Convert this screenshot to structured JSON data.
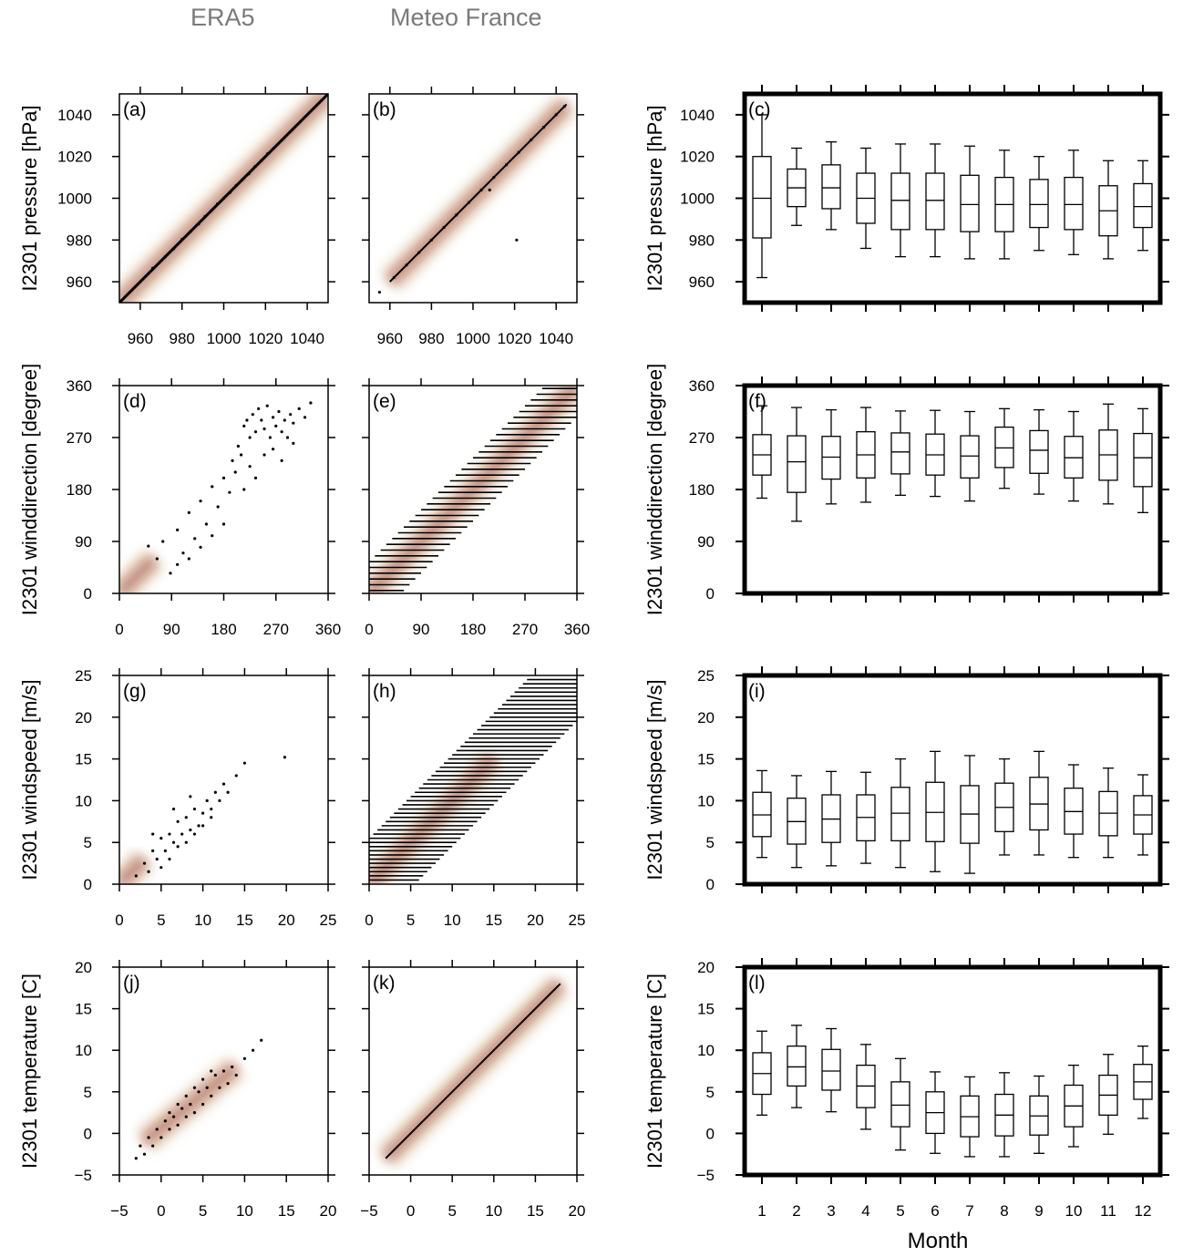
{
  "column_titles": [
    "ERA5",
    "Meteo France"
  ],
  "month_axis_label": "Month",
  "colors": {
    "box": "#000000",
    "frame_scatter": "#000000",
    "density_low": "#c8a070",
    "density_high": "#8b1a1a"
  },
  "chart_data": [
    {
      "id": "a",
      "panel_label": "(a)",
      "type": "scatter",
      "ylabel": "I2301 pressure [hPa]",
      "xlim": [
        950,
        1050
      ],
      "ylim": [
        950,
        1050
      ],
      "xticks": [
        960,
        980,
        1000,
        1020,
        1040
      ],
      "xtick_labels": [
        "960",
        "980",
        "1000",
        "1020",
        "1040"
      ],
      "yticks": [
        960,
        980,
        1000,
        1020,
        1040
      ],
      "ytick_labels": [
        "960",
        "980",
        "1000",
        "1020",
        "1040"
      ],
      "density_path": [
        [
          950,
          950
        ],
        [
          1050,
          1050
        ]
      ],
      "points_x": [
        966,
        972,
        976,
        980,
        984,
        988,
        991,
        994,
        997,
        1000,
        1003,
        1006,
        1009,
        1012,
        1015,
        1018,
        1021,
        1024
      ],
      "points_y": [
        966.5,
        972,
        975.8,
        980.3,
        984,
        987.7,
        991.2,
        994,
        997.3,
        1000,
        1002.8,
        1006.2,
        1009,
        1011.7,
        1015.2,
        1018,
        1021.3,
        1024
      ]
    },
    {
      "id": "b",
      "panel_label": "(b)",
      "type": "scatter",
      "xlim": [
        950,
        1050
      ],
      "ylim": [
        950,
        1050
      ],
      "xticks": [
        960,
        980,
        1000,
        1020,
        1040
      ],
      "xtick_labels": [
        "960",
        "980",
        "1000",
        "1020",
        "1040"
      ],
      "yticks": [
        960,
        980,
        1000,
        1020,
        1040
      ],
      "density_path": [
        [
          960,
          960
        ],
        [
          1045,
          1045
        ]
      ],
      "points_x": [
        955,
        962,
        968,
        974,
        980,
        986,
        992,
        998,
        1004,
        1010,
        1016,
        1022,
        1028,
        1034,
        1040,
        1044,
        1008,
        1021
      ],
      "points_y": [
        955,
        962,
        968,
        974,
        980,
        986,
        992,
        998,
        1004,
        1010,
        1016,
        1022,
        1028,
        1034,
        1040,
        1044,
        1004,
        980
      ]
    },
    {
      "id": "c",
      "panel_label": "(c)",
      "type": "box",
      "ylabel": "I2301 pressure [hPa]",
      "ylim": [
        950,
        1050
      ],
      "yticks": [
        960,
        980,
        1000,
        1020,
        1040
      ],
      "ytick_labels": [
        "960",
        "980",
        "1000",
        "1020",
        "1040"
      ],
      "categories": [
        "1",
        "2",
        "3",
        "4",
        "5",
        "6",
        "7",
        "8",
        "9",
        "10",
        "11",
        "12"
      ],
      "whisker_low": [
        962,
        987,
        985,
        976,
        972,
        972,
        971,
        971,
        975,
        973,
        971,
        975
      ],
      "q1": [
        981,
        996,
        995,
        988,
        985,
        985,
        984,
        984,
        986,
        985,
        982,
        986
      ],
      "median": [
        1000,
        1005,
        1005,
        1000,
        999,
        999,
        997,
        997,
        997,
        997,
        994,
        996
      ],
      "q3": [
        1020,
        1014,
        1016,
        1012,
        1012,
        1012,
        1011,
        1010,
        1009,
        1010,
        1006,
        1007
      ],
      "whisker_high": [
        1040,
        1024,
        1027,
        1024,
        1026,
        1026,
        1025,
        1023,
        1020,
        1023,
        1018,
        1018
      ]
    },
    {
      "id": "d",
      "panel_label": "(d)",
      "type": "scatter",
      "ylabel": "I2301 winddirection [degree]",
      "xlim": [
        0,
        360
      ],
      "ylim": [
        0,
        360
      ],
      "xticks": [
        0,
        90,
        180,
        270,
        360
      ],
      "xtick_labels": [
        "0",
        "90",
        "180",
        "270",
        "360"
      ],
      "yticks": [
        0,
        90,
        180,
        270,
        360
      ],
      "ytick_labels": [
        "0",
        "90",
        "180",
        "270",
        "360"
      ],
      "density_path": [
        [
          0,
          0
        ],
        [
          60,
          60
        ]
      ],
      "points_x": [
        50,
        65,
        75,
        88,
        100,
        110,
        120,
        130,
        140,
        150,
        160,
        170,
        180,
        190,
        195,
        200,
        205,
        210,
        215,
        220,
        225,
        230,
        235,
        240,
        245,
        250,
        255,
        260,
        265,
        270,
        275,
        280,
        285,
        290,
        295,
        300,
        310,
        320,
        330,
        215,
        225,
        235,
        250,
        265,
        280,
        300,
        180,
        160,
        140,
        120,
        100
      ],
      "points_y": [
        82,
        60,
        90,
        35,
        110,
        70,
        140,
        95,
        160,
        120,
        185,
        150,
        200,
        175,
        230,
        210,
        255,
        240,
        290,
        300,
        270,
        310,
        280,
        320,
        300,
        285,
        325,
        270,
        305,
        290,
        315,
        280,
        300,
        270,
        310,
        295,
        320,
        305,
        330,
        180,
        220,
        200,
        240,
        250,
        230,
        260,
        120,
        100,
        80,
        60,
        50
      ]
    },
    {
      "id": "e",
      "panel_label": "(e)",
      "type": "scatter",
      "xlim": [
        0,
        360
      ],
      "ylim": [
        0,
        360
      ],
      "xticks": [
        0,
        90,
        180,
        270,
        360
      ],
      "xtick_labels": [
        "0",
        "90",
        "180",
        "270",
        "360"
      ],
      "yticks": [
        0,
        90,
        180,
        270,
        360
      ],
      "density_path": [
        [
          0,
          0
        ],
        [
          360,
          360
        ]
      ],
      "band_levels": [
        5,
        15,
        25,
        35,
        45,
        55,
        65,
        75,
        85,
        95,
        105,
        115,
        125,
        135,
        145,
        155,
        165,
        175,
        185,
        195,
        205,
        215,
        225,
        235,
        245,
        255,
        265,
        275,
        285,
        295,
        305,
        315,
        325,
        335,
        345,
        355
      ],
      "band_half_width": 55,
      "points_x": [],
      "points_y": []
    },
    {
      "id": "f",
      "panel_label": "(f)",
      "type": "box",
      "ylabel": "I2301 winddirection [degree]",
      "ylim": [
        0,
        360
      ],
      "yticks": [
        0,
        90,
        180,
        270,
        360
      ],
      "ytick_labels": [
        "0",
        "90",
        "180",
        "270",
        "360"
      ],
      "categories": [
        "1",
        "2",
        "3",
        "4",
        "5",
        "6",
        "7",
        "8",
        "9",
        "10",
        "11",
        "12"
      ],
      "whisker_low": [
        165,
        125,
        155,
        158,
        170,
        168,
        160,
        182,
        172,
        160,
        155,
        140
      ],
      "q1": [
        205,
        175,
        198,
        200,
        207,
        205,
        200,
        218,
        208,
        200,
        196,
        185
      ],
      "median": [
        240,
        228,
        236,
        240,
        245,
        240,
        238,
        252,
        248,
        235,
        240,
        235
      ],
      "q3": [
        275,
        273,
        272,
        280,
        278,
        276,
        273,
        288,
        282,
        272,
        283,
        277
      ],
      "whisker_high": [
        325,
        322,
        318,
        322,
        316,
        317,
        315,
        320,
        318,
        315,
        328,
        320
      ]
    },
    {
      "id": "g",
      "panel_label": "(g)",
      "type": "scatter",
      "ylabel": "I2301 windspeed [m/s]",
      "xlim": [
        0,
        25
      ],
      "ylim": [
        0,
        25
      ],
      "xticks": [
        0,
        5,
        10,
        15,
        20,
        25
      ],
      "xtick_labels": [
        "0",
        "5",
        "10",
        "15",
        "20",
        "25"
      ],
      "yticks": [
        0,
        5,
        10,
        15,
        20,
        25
      ],
      "ytick_labels": [
        "0",
        "5",
        "10",
        "15",
        "20",
        "25"
      ],
      "density_path": [
        [
          0,
          0
        ],
        [
          3,
          3
        ]
      ],
      "points_x": [
        2,
        3,
        3.5,
        4,
        4.5,
        5,
        5.5,
        6,
        6.5,
        7,
        7.5,
        8,
        8.5,
        9,
        9.5,
        10,
        10.5,
        11,
        11.5,
        12,
        12.5,
        13,
        14,
        15,
        19.8,
        5,
        6,
        7,
        8,
        9,
        10,
        11,
        4,
        6.5,
        8.5
      ],
      "points_y": [
        1,
        2.5,
        1.5,
        4,
        3,
        5.5,
        4,
        6,
        5,
        7.5,
        6,
        8,
        6.5,
        9,
        7,
        8.5,
        10,
        9,
        11,
        10,
        12,
        11,
        13,
        14.5,
        15.2,
        2,
        3,
        4.5,
        5,
        6,
        7,
        8,
        6,
        9,
        10.5
      ]
    },
    {
      "id": "h",
      "panel_label": "(h)",
      "type": "scatter",
      "xlim": [
        0,
        25
      ],
      "ylim": [
        0,
        25
      ],
      "xticks": [
        0,
        5,
        10,
        15,
        20,
        25
      ],
      "xtick_labels": [
        "0",
        "5",
        "10",
        "15",
        "20",
        "25"
      ],
      "yticks": [
        0,
        5,
        10,
        15,
        20,
        25
      ],
      "density_path": [
        [
          0,
          0
        ],
        [
          15,
          15
        ]
      ],
      "band_levels": [
        0.5,
        1,
        1.5,
        2,
        2.5,
        3,
        3.5,
        4,
        4.5,
        5,
        5.5,
        6,
        6.5,
        7,
        7.5,
        8,
        8.5,
        9,
        9.5,
        10,
        10.5,
        11,
        11.5,
        12,
        12.5,
        13,
        13.5,
        14,
        14.5,
        15,
        15.5,
        16,
        16.5,
        17,
        17.5,
        18,
        18.5,
        19,
        19.5,
        20,
        20.5,
        21,
        21.5,
        22,
        22.5,
        23,
        23.5,
        24,
        24.5
      ],
      "band_half_width": 5.5,
      "points_x": [],
      "points_y": []
    },
    {
      "id": "i",
      "panel_label": "(i)",
      "type": "box",
      "ylabel": "I2301 windspeed [m/s]",
      "ylim": [
        0,
        25
      ],
      "yticks": [
        0,
        5,
        10,
        15,
        20,
        25
      ],
      "ytick_labels": [
        "0",
        "5",
        "10",
        "15",
        "20",
        "25"
      ],
      "categories": [
        "1",
        "2",
        "3",
        "4",
        "5",
        "6",
        "7",
        "8",
        "9",
        "10",
        "11",
        "12"
      ],
      "whisker_low": [
        3.2,
        2,
        2.2,
        2.5,
        2,
        1.5,
        1.3,
        3.5,
        3.5,
        3.2,
        3.2,
        3.5
      ],
      "q1": [
        5.7,
        4.8,
        5,
        5.2,
        5.2,
        5.1,
        4.9,
        6.3,
        6.5,
        6,
        5.8,
        6
      ],
      "median": [
        8.3,
        7.5,
        7.8,
        8,
        8.5,
        8.6,
        8.4,
        9.2,
        9.6,
        8.7,
        8.5,
        8.3
      ],
      "q3": [
        11,
        10.3,
        10.7,
        10.7,
        11.6,
        12.2,
        11.8,
        12.1,
        12.8,
        11.5,
        11.1,
        10.6
      ],
      "whisker_high": [
        13.6,
        13,
        13.5,
        13.4,
        15,
        15.9,
        15.4,
        15,
        15.9,
        14.3,
        13.9,
        13.1
      ]
    },
    {
      "id": "j",
      "panel_label": "(j)",
      "type": "scatter",
      "ylabel": "I2301 temperature [C]",
      "xlim": [
        -5,
        20
      ],
      "ylim": [
        -5,
        20
      ],
      "xticks": [
        -5,
        0,
        5,
        10,
        15,
        20
      ],
      "xtick_labels": [
        "−5",
        "0",
        "5",
        "10",
        "15",
        "20"
      ],
      "yticks": [
        -5,
        0,
        5,
        10,
        15,
        20
      ],
      "ytick_labels": [
        "−5",
        "0",
        "5",
        "10",
        "15",
        "20"
      ],
      "density_path": [
        [
          -2,
          -1
        ],
        [
          9,
          8
        ]
      ],
      "points_x": [
        -3,
        -2.5,
        -2,
        -1.5,
        -1,
        -0.5,
        0,
        0.5,
        1,
        1.5,
        2,
        2.5,
        3,
        3.5,
        4,
        4.5,
        5,
        5.5,
        6,
        6.5,
        7,
        7.5,
        8,
        8.5,
        9,
        10,
        11,
        12,
        1,
        2,
        3,
        4,
        5,
        6
      ],
      "points_y": [
        -3,
        -1.5,
        -2.5,
        -0.5,
        -1.5,
        0.5,
        -0.5,
        1.5,
        0.5,
        2,
        1,
        3,
        2,
        3.5,
        2.5,
        5,
        3.5,
        5.5,
        4.5,
        7,
        5.5,
        7.5,
        6,
        8,
        7,
        9,
        10,
        11.2,
        2.5,
        3.5,
        4.5,
        5.5,
        6.5,
        7.5
      ]
    },
    {
      "id": "k",
      "panel_label": "(k)",
      "type": "scatter",
      "xlim": [
        -5,
        20
      ],
      "ylim": [
        -5,
        20
      ],
      "xticks": [
        -5,
        0,
        5,
        10,
        15,
        20
      ],
      "xtick_labels": [
        "−5",
        "0",
        "5",
        "10",
        "15",
        "20"
      ],
      "yticks": [
        -5,
        0,
        5,
        10,
        15,
        20
      ],
      "density_path": [
        [
          -3,
          -3
        ],
        [
          18,
          18
        ]
      ],
      "points_x": [],
      "points_y": []
    },
    {
      "id": "l",
      "panel_label": "(l)",
      "type": "box",
      "ylabel": "I2301 temperature [C]",
      "ylim": [
        -5,
        20
      ],
      "yticks": [
        -5,
        0,
        5,
        10,
        15,
        20
      ],
      "ytick_labels": [
        "−5",
        "0",
        "5",
        "10",
        "15",
        "20"
      ],
      "categories": [
        "1",
        "2",
        "3",
        "4",
        "5",
        "6",
        "7",
        "8",
        "9",
        "10",
        "11",
        "12"
      ],
      "xlabel": "Month",
      "whisker_low": [
        2.2,
        3.1,
        2.6,
        0.5,
        -2,
        -2.4,
        -2.8,
        -2.8,
        -2.4,
        -1.6,
        -0.1,
        1.8
      ],
      "q1": [
        4.7,
        5.7,
        5.2,
        3.1,
        0.8,
        0,
        -0.4,
        -0.3,
        -0.2,
        0.8,
        2.2,
        4.1
      ],
      "median": [
        7.2,
        8,
        7.5,
        5.7,
        3.4,
        2.5,
        2,
        2.2,
        2.1,
        3.3,
        4.6,
        6.2
      ],
      "q3": [
        9.7,
        10.5,
        10.1,
        8.2,
        6.2,
        5,
        4.5,
        4.7,
        4.5,
        5.8,
        7,
        8.3
      ],
      "whisker_high": [
        12.3,
        13,
        12.6,
        10.7,
        9,
        7.4,
        6.8,
        7.3,
        6.9,
        8.2,
        9.5,
        10.5
      ]
    }
  ]
}
